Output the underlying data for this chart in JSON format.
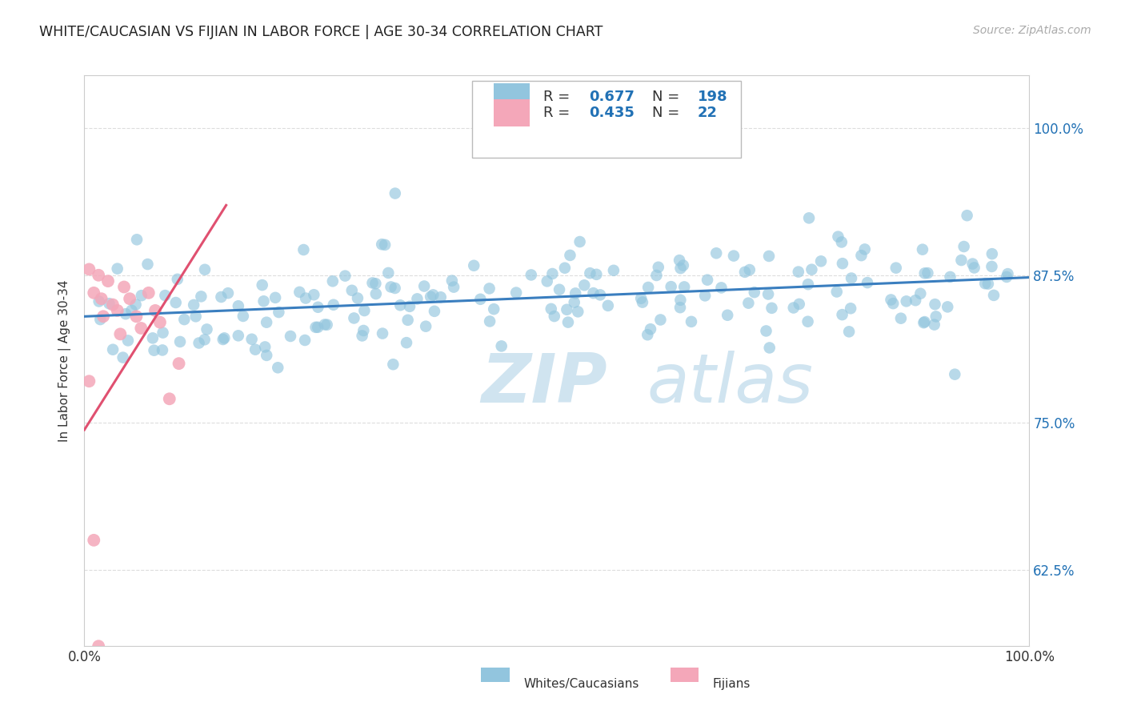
{
  "title": "WHITE/CAUCASIAN VS FIJIAN IN LABOR FORCE | AGE 30-34 CORRELATION CHART",
  "source": "Source: ZipAtlas.com",
  "ylabel": "In Labor Force | Age 30-34",
  "legend_label1": "Whites/Caucasians",
  "legend_label2": "Fijians",
  "R1": 0.677,
  "N1": 198,
  "R2": 0.435,
  "N2": 22,
  "blue_color": "#92c5de",
  "pink_color": "#f4a7b9",
  "line_blue": "#3a7ebf",
  "line_pink": "#e05070",
  "text_blue": "#2171b5",
  "text_black": "#333333",
  "background": "#ffffff",
  "grid_color": "#dddddd",
  "watermark_color": "#d0e4f0",
  "ylim_low": 0.56,
  "ylim_high": 1.045,
  "yticks": [
    0.625,
    0.75,
    0.875,
    1.0
  ],
  "ytick_labels": [
    "62.5%",
    "75.0%",
    "87.5%",
    "100.0%"
  ],
  "xtick_labels": [
    "0.0%",
    "100.0%"
  ]
}
